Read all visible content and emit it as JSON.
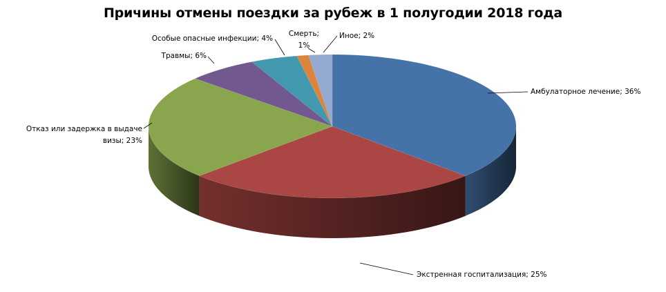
{
  "chart_data": {
    "type": "pie",
    "title": "Причины отмены поездки за рубеж в 1 полугодии 2018 года",
    "categories": [
      "Амбулаторное лечение",
      "Экстренная госпитализация",
      "Отказ или задержка в выдаче визы",
      "Травмы",
      "Особые опасные инфекции",
      "Смерть",
      "Иное"
    ],
    "values": [
      36,
      25,
      23,
      6,
      4,
      1,
      2
    ],
    "unit": "%",
    "colors": [
      "#4572a7",
      "#aa4643",
      "#89a54e",
      "#71588f",
      "#4198af",
      "#db843d",
      "#93a9cf"
    ],
    "data_labels": [
      [
        "Амбулаторное лечение; 36%"
      ],
      [
        "Экстренная госпитализация; 25%"
      ],
      [
        "Отказ или задержка в выдаче",
        "визы; 23%"
      ],
      [
        "Травмы; 6%"
      ],
      [
        "Особые опасные инфекции; 4%"
      ],
      [
        "Смерть;",
        "1%"
      ],
      [
        "Иное; 2%"
      ]
    ],
    "style": "3d-exploded-none",
    "legend": "none"
  }
}
